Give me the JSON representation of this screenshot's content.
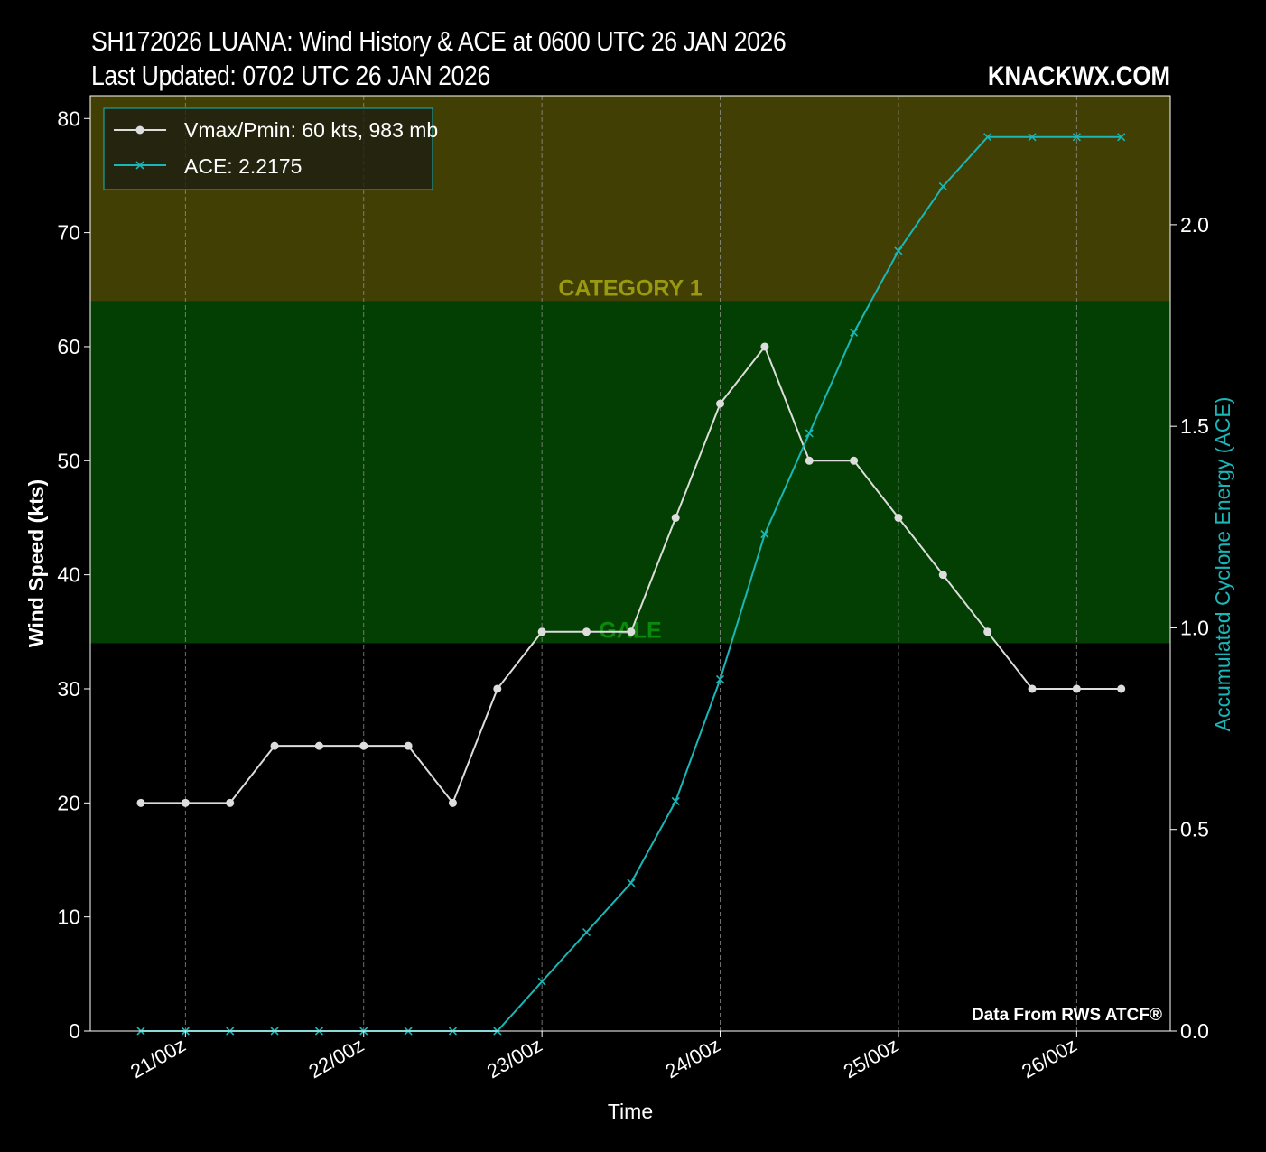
{
  "title_line1": "SH172026 LUANA: Wind History & ACE at 0600 UTC 26 JAN 2026",
  "title_line2": "Last Updated: 0702 UTC 26 JAN 2026",
  "brand": "KNACKWX.COM",
  "source_note": "Data From RWS ATCF®",
  "colors": {
    "background": "#000000",
    "vmax": "#dddddd",
    "ace": "#19b7b7",
    "cat1_band": "#413f04",
    "gale_band": "#033f02",
    "cat1_label": "#9a9a10",
    "gale_label": "#0a8a0a"
  },
  "chart_data": {
    "type": "line",
    "xlabel": "Time",
    "ylabel": "Wind Speed (kts)",
    "y2label": "Accumulated Cyclone Energy (ACE)",
    "ylim": [
      0,
      82
    ],
    "y2lim": [
      0,
      2.32
    ],
    "yticks": [
      "0",
      "10",
      "20",
      "30",
      "40",
      "50",
      "60",
      "70",
      "80"
    ],
    "y2ticks": [
      "0.0",
      "0.5",
      "1.0",
      "1.5",
      "2.0"
    ],
    "xticks": [
      "21/00z",
      "22/00z",
      "23/00z",
      "24/00z",
      "25/00z",
      "26/00z"
    ],
    "grid": "vertical dashed at x ticks",
    "legend": "top-left",
    "bands": [
      {
        "label": "GALE",
        "from": 34,
        "to": 64
      },
      {
        "label": "CATEGORY 1",
        "from": 64,
        "to": 82
      }
    ],
    "x_times": [
      "20/18z",
      "21/00z",
      "21/06z",
      "21/12z",
      "21/18z",
      "22/00z",
      "22/06z",
      "22/12z",
      "22/18z",
      "23/00z",
      "23/06z",
      "23/12z",
      "23/18z",
      "24/00z",
      "24/06z",
      "24/12z",
      "24/18z",
      "25/00z",
      "25/06z",
      "25/12z",
      "25/18z",
      "26/00z",
      "26/06z"
    ],
    "series": [
      {
        "name": "Vmax/Pmin: 60 kts, 983 mb",
        "axis": "left",
        "marker": "circle",
        "values": [
          20,
          20,
          20,
          25,
          25,
          25,
          25,
          20,
          30,
          35,
          35,
          35,
          45,
          55,
          60,
          50,
          50,
          45,
          40,
          35,
          30,
          30,
          30
        ]
      },
      {
        "name": "ACE: 2.2175",
        "axis": "right",
        "marker": "x",
        "values": [
          0,
          0,
          0,
          0,
          0,
          0,
          0,
          0,
          0,
          0.1225,
          0.245,
          0.3675,
          0.57,
          0.8725,
          1.2325,
          1.4825,
          1.7325,
          1.935,
          2.095,
          2.2175,
          2.2175,
          2.2175,
          2.2175
        ]
      }
    ]
  }
}
